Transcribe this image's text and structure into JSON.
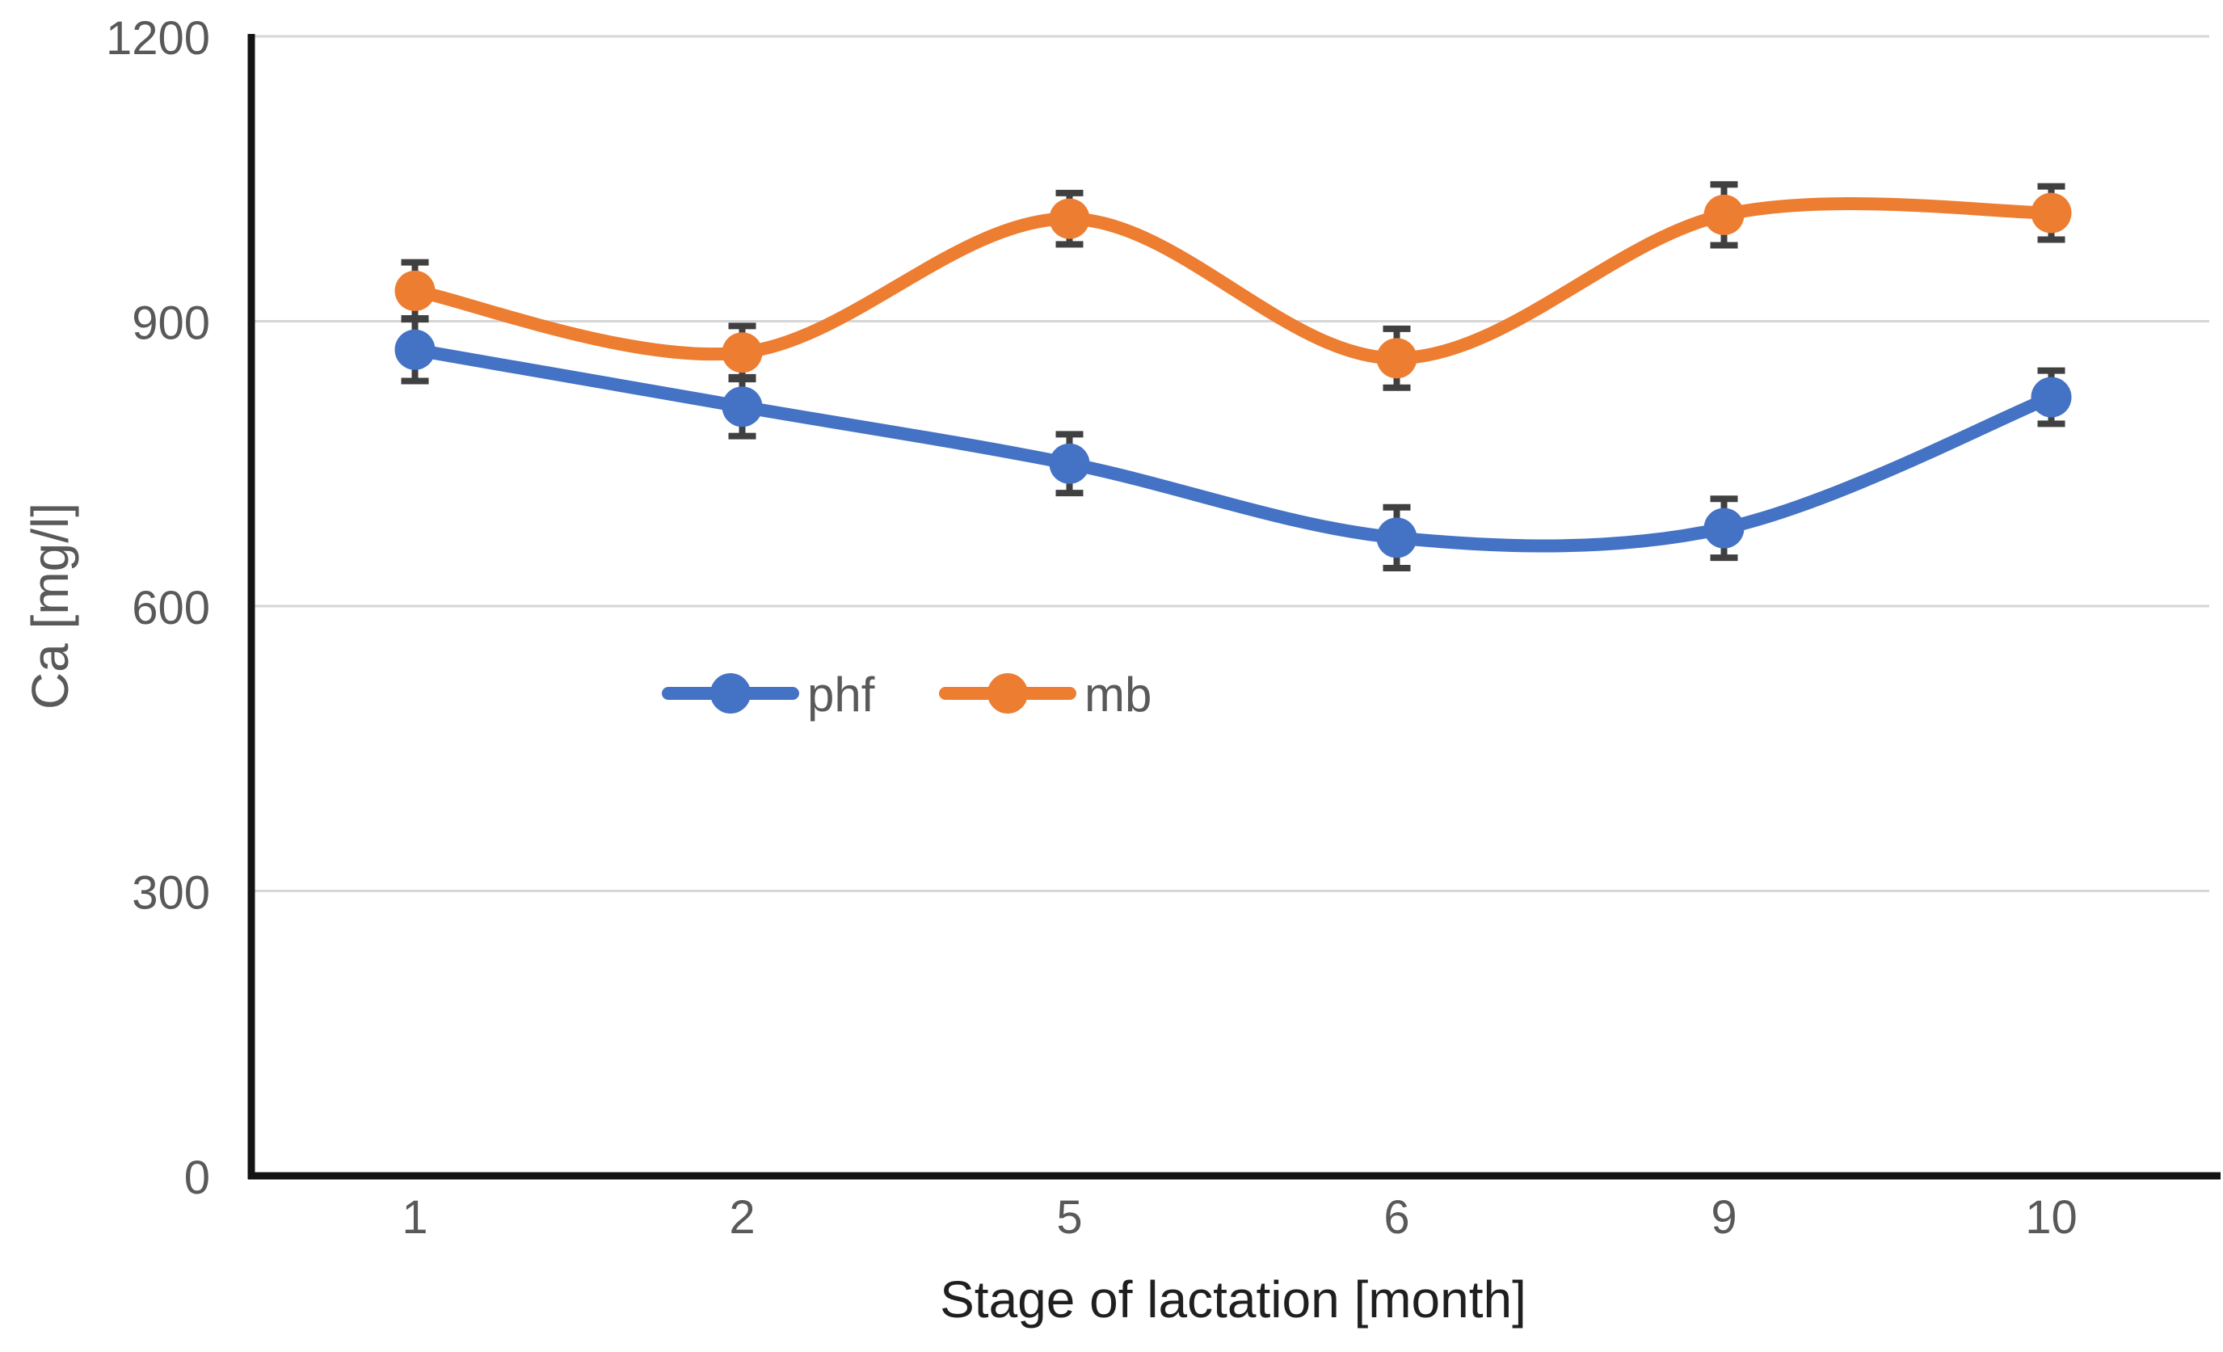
{
  "chart_data": {
    "type": "line",
    "title": "",
    "xlabel": "Stage of lactation [month]",
    "ylabel": "Ca [mg/l]",
    "categories": [
      "1",
      "2",
      "5",
      "6",
      "9",
      "10"
    ],
    "x_values": [
      1,
      2,
      5,
      6,
      9,
      10
    ],
    "ylim": [
      0,
      1200
    ],
    "yticks": [
      0,
      300,
      600,
      900,
      1200
    ],
    "ytick_labels": [
      "0",
      "300",
      "600",
      "900",
      "1200"
    ],
    "grid": "horizontal",
    "smooth": true,
    "marker": "circle",
    "legend": {
      "position": "inside-plot-center-left",
      "items": [
        "phf",
        "mb"
      ]
    },
    "series": [
      {
        "name": "phf",
        "color": "#4472C4",
        "values": [
          870,
          810,
          750,
          672,
          682,
          820
        ],
        "errors": [
          33,
          31,
          31,
          32,
          31,
          28
        ]
      },
      {
        "name": "mb",
        "color": "#ED7D31",
        "values": [
          932,
          867,
          1008,
          861,
          1012,
          1014
        ],
        "errors": [
          30,
          28,
          27,
          31,
          32,
          28
        ]
      }
    ],
    "colors": {
      "error_bar": "#404040",
      "gridline": "#D6D6D6",
      "axis_line": "#141414",
      "tick_label": "#595959",
      "xlabel": "#1F1F1F",
      "ylabel": "#595959",
      "legend_label": "#595959",
      "background": "#FFFFFF"
    }
  }
}
